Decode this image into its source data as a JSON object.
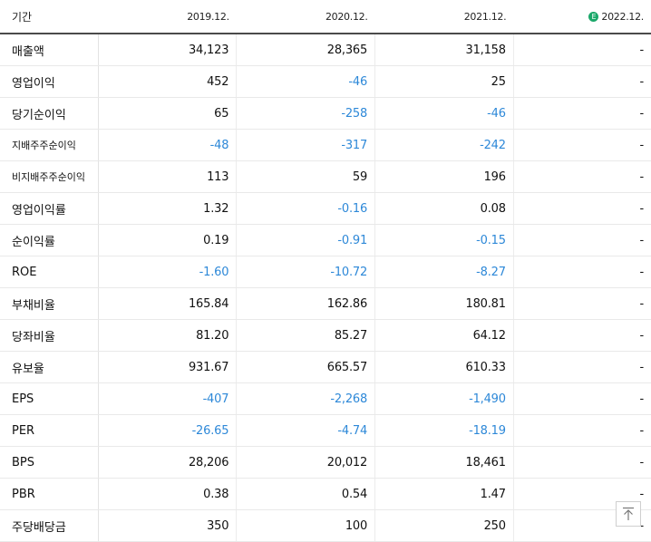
{
  "header": {
    "period_label": "기간",
    "columns": [
      "2019.12.",
      "2020.12.",
      "2021.12.",
      "2022.12."
    ],
    "estimate_badge": "E"
  },
  "rows": [
    {
      "label": "매출액",
      "values": [
        "34,123",
        "28,365",
        "31,158",
        "-"
      ]
    },
    {
      "label": "영업이익",
      "values": [
        "452",
        "-46",
        "25",
        "-"
      ]
    },
    {
      "label": "당기순이익",
      "values": [
        "65",
        "-258",
        "-46",
        "-"
      ]
    },
    {
      "label": "지배주주순이익",
      "values": [
        "-48",
        "-317",
        "-242",
        "-"
      ]
    },
    {
      "label": "비지배주주순이익",
      "values": [
        "113",
        "59",
        "196",
        "-"
      ]
    },
    {
      "label": "영업이익률",
      "values": [
        "1.32",
        "-0.16",
        "0.08",
        "-"
      ]
    },
    {
      "label": "순이익률",
      "values": [
        "0.19",
        "-0.91",
        "-0.15",
        "-"
      ]
    },
    {
      "label": "ROE",
      "values": [
        "-1.60",
        "-10.72",
        "-8.27",
        "-"
      ]
    },
    {
      "label": "부채비율",
      "values": [
        "165.84",
        "162.86",
        "180.81",
        "-"
      ]
    },
    {
      "label": "당좌비율",
      "values": [
        "81.20",
        "85.27",
        "64.12",
        "-"
      ]
    },
    {
      "label": "유보율",
      "values": [
        "931.67",
        "665.57",
        "610.33",
        "-"
      ]
    },
    {
      "label": "EPS",
      "values": [
        "-407",
        "-2,268",
        "-1,490",
        "-"
      ]
    },
    {
      "label": "PER",
      "values": [
        "-26.65",
        "-4.74",
        "-18.19",
        "-"
      ]
    },
    {
      "label": "BPS",
      "values": [
        "28,206",
        "20,012",
        "18,461",
        "-"
      ]
    },
    {
      "label": "PBR",
      "values": [
        "0.38",
        "0.54",
        "1.47",
        "-"
      ]
    },
    {
      "label": "주당배당금",
      "values": [
        "350",
        "100",
        "250",
        "-"
      ]
    }
  ],
  "colors": {
    "negative": "#2d88d8",
    "estimate_badge": "#1ba86a"
  },
  "scroll_top_icon": "arrow-up-to-top-icon"
}
